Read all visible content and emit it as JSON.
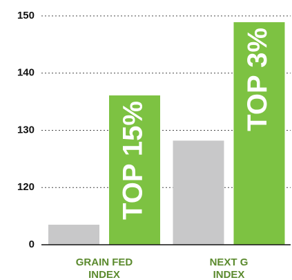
{
  "chart_data": {
    "type": "bar",
    "categories": [
      [
        "GRAIN FED",
        "INDEX"
      ],
      [
        "NEXT G",
        "INDEX"
      ]
    ],
    "series": [
      {
        "color": "#c8c8c9",
        "values": [
          113.5,
          128.2
        ]
      },
      {
        "color": "#7dc242",
        "values": [
          136.1,
          148.9
        ],
        "value_labels": [
          "TOP 15%",
          "TOP 3%"
        ]
      }
    ],
    "ylim": [
      0,
      150
    ],
    "ybreak": [
      0,
      110
    ],
    "yticks": [
      0,
      120,
      130,
      140,
      150
    ],
    "grid": true
  }
}
